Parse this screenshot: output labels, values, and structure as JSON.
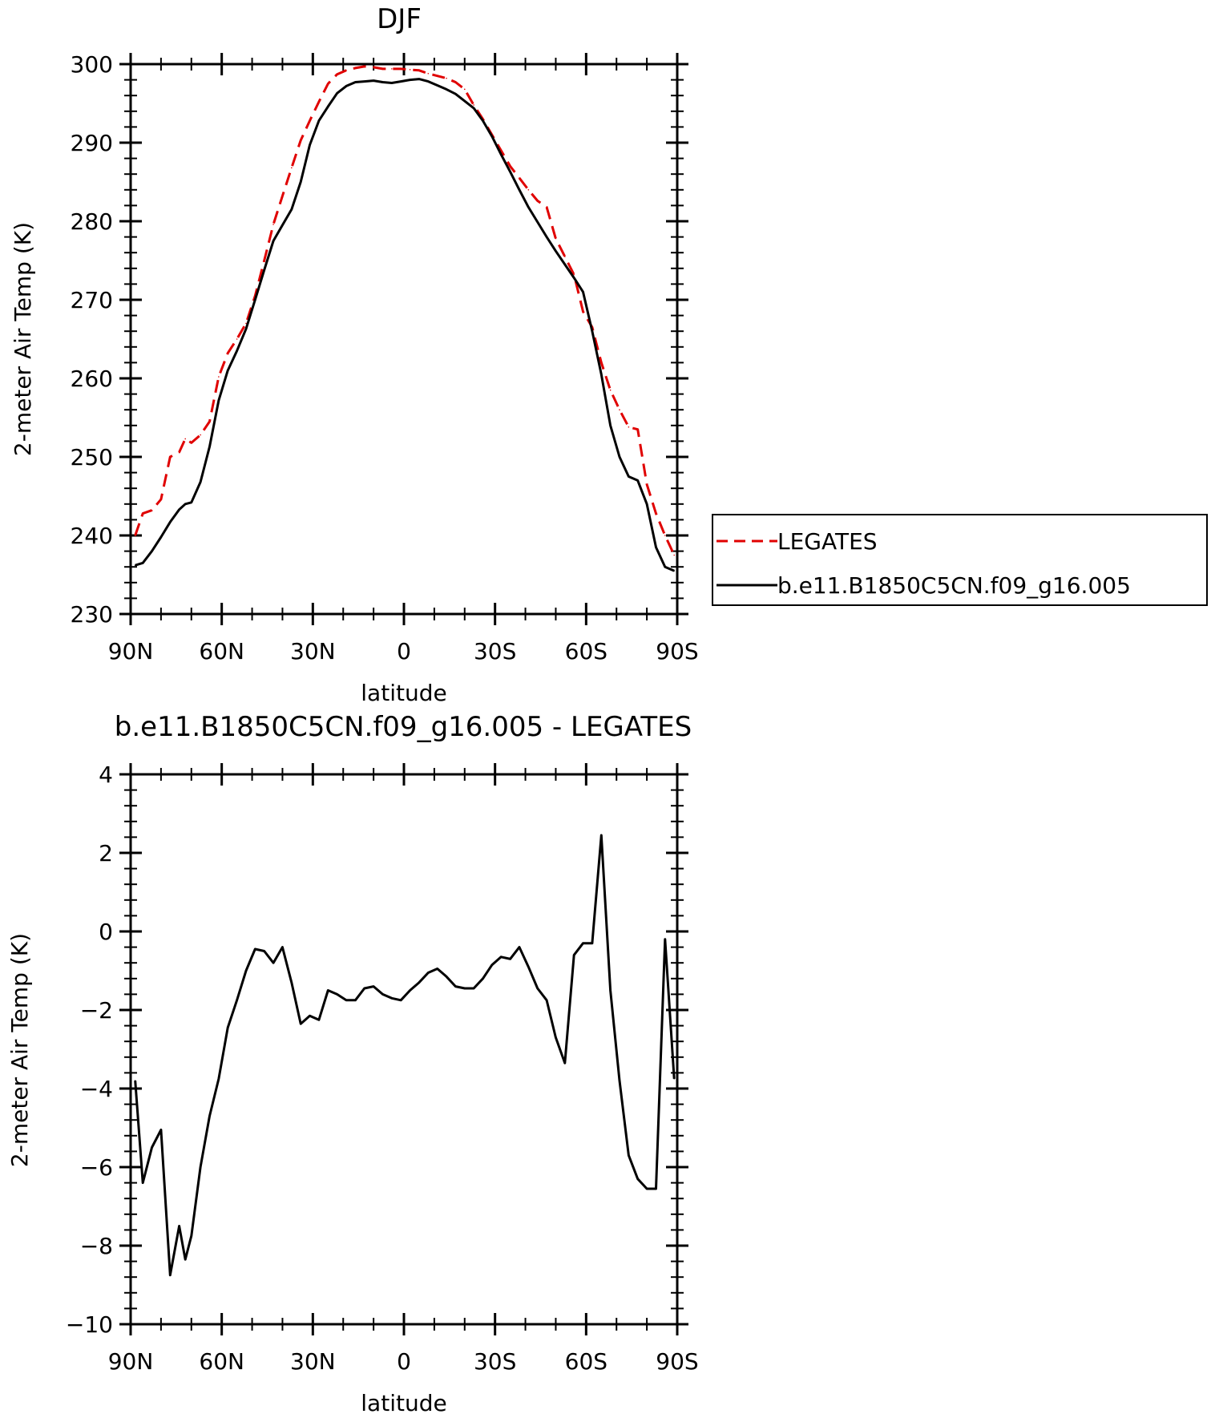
{
  "chart_data": [
    {
      "type": "line",
      "title": "DJF",
      "xlabel": "latitude",
      "ylabel": "2-meter Air Temp (K)",
      "xlim": [
        90,
        -90
      ],
      "ylim": [
        230,
        300
      ],
      "x_ticks": [
        90,
        60,
        30,
        0,
        -30,
        -60,
        -90
      ],
      "x_tick_labels": [
        "90N",
        "60N",
        "30N",
        "0",
        "30S",
        "60S",
        "90S"
      ],
      "y_ticks": [
        230,
        240,
        250,
        260,
        270,
        280,
        290,
        300
      ],
      "y_tick_labels": [
        "230",
        "240",
        "250",
        "260",
        "270",
        "280",
        "290",
        "300"
      ],
      "legend_position": "right",
      "series": [
        {
          "name": "LEGATES",
          "color": "#e00000",
          "style": "dashed",
          "x": [
            88.5,
            86,
            83,
            80,
            77,
            74,
            72,
            70,
            67,
            64,
            61,
            58,
            55,
            52,
            49,
            46,
            43,
            40,
            37,
            34,
            31,
            28,
            25,
            22,
            19,
            16,
            13,
            10,
            7,
            4,
            1,
            -2,
            -5,
            -8,
            -11,
            -14,
            -17,
            -20,
            -23,
            -26,
            -29,
            -32,
            -35,
            -38,
            -41,
            -44,
            -47,
            -50,
            -53,
            -56,
            -59,
            -62,
            -65,
            -68,
            -71,
            -74,
            -77,
            -80,
            -83,
            -86,
            -89
          ],
          "y": [
            240.0,
            242.8,
            243.2,
            244.6,
            250.0,
            250.6,
            252.3,
            251.8,
            252.8,
            254.5,
            260.2,
            263.2,
            265.0,
            267.0,
            270.5,
            275.0,
            279.6,
            283.2,
            286.8,
            290.3,
            292.8,
            295.2,
            297.5,
            298.7,
            299.2,
            299.5,
            299.7,
            299.6,
            299.4,
            299.4,
            299.4,
            299.3,
            299.2,
            298.8,
            298.5,
            298.2,
            297.7,
            296.8,
            294.8,
            293.0,
            291.0,
            289.0,
            287.0,
            285.5,
            284.0,
            282.6,
            281.8,
            277.8,
            275.5,
            273.2,
            268.5,
            266.5,
            262.0,
            258.5,
            256.0,
            253.8,
            253.5,
            246.5,
            242.8,
            240.0,
            237.5
          ]
        },
        {
          "name": "b.e11.B1850C5CN.f09_g16.005",
          "color": "#000000",
          "style": "solid",
          "x": [
            88.5,
            86,
            83,
            80,
            77,
            74,
            72,
            70,
            67,
            64,
            61,
            58,
            55,
            52,
            49,
            46,
            43,
            40,
            37,
            34,
            31,
            28,
            25,
            22,
            19,
            16,
            13,
            10,
            7,
            4,
            1,
            -2,
            -5,
            -8,
            -11,
            -14,
            -17,
            -20,
            -23,
            -26,
            -29,
            -32,
            -35,
            -38,
            -41,
            -44,
            -47,
            -50,
            -53,
            -56,
            -59,
            -62,
            -65,
            -68,
            -71,
            -74,
            -77,
            -80,
            -83,
            -86,
            -89
          ],
          "y": [
            236.2,
            236.5,
            238.0,
            239.8,
            241.7,
            243.3,
            244.0,
            244.2,
            246.8,
            251.3,
            257.2,
            261.0,
            263.5,
            266.3,
            270.0,
            273.8,
            277.5,
            279.5,
            281.5,
            285.0,
            289.7,
            292.8,
            294.6,
            296.3,
            297.2,
            297.7,
            297.8,
            297.9,
            297.7,
            297.6,
            297.8,
            298.0,
            298.1,
            297.8,
            297.3,
            296.8,
            296.2,
            295.3,
            294.4,
            292.8,
            290.8,
            288.5,
            286.3,
            284.0,
            281.8,
            279.9,
            278.0,
            276.2,
            274.5,
            272.8,
            271.0,
            266.0,
            260.5,
            254.0,
            250.0,
            247.5,
            247.0,
            244.0,
            238.5,
            236.0,
            235.5
          ]
        }
      ]
    },
    {
      "type": "line",
      "title": "b.e11.B1850C5CN.f09_g16.005 - LEGATES",
      "xlabel": "latitude",
      "ylabel": "2-meter Air Temp (K)",
      "xlim": [
        90,
        -90
      ],
      "ylim": [
        -10,
        4
      ],
      "x_ticks": [
        90,
        60,
        30,
        0,
        -30,
        -60,
        -90
      ],
      "x_tick_labels": [
        "90N",
        "60N",
        "30N",
        "0",
        "30S",
        "60S",
        "90S"
      ],
      "y_ticks": [
        -10,
        -8,
        -6,
        -4,
        -2,
        0,
        2,
        4
      ],
      "y_tick_labels": [
        "−10",
        "−8",
        "−6",
        "−4",
        "−2",
        "0",
        "2",
        "4"
      ],
      "series": [
        {
          "color": "#000000",
          "style": "solid",
          "x": [
            88.5,
            86,
            83,
            80,
            77,
            74,
            72,
            70,
            67,
            64,
            61,
            58,
            55,
            52,
            49,
            46,
            43,
            40,
            37,
            34,
            31,
            28,
            25,
            22,
            19,
            16,
            13,
            10,
            7,
            4,
            1,
            -2,
            -5,
            -8,
            -11,
            -14,
            -17,
            -20,
            -23,
            -26,
            -29,
            -32,
            -35,
            -38,
            -41,
            -44,
            -47,
            -50,
            -53,
            -56,
            -59,
            -62,
            -65,
            -68,
            -71,
            -74,
            -77,
            -80,
            -83,
            -86,
            -89
          ],
          "y": [
            -3.8,
            -6.4,
            -5.5,
            -5.05,
            -8.75,
            -7.5,
            -8.35,
            -7.75,
            -6.0,
            -4.7,
            -3.75,
            -2.45,
            -1.75,
            -1.0,
            -0.45,
            -0.5,
            -0.8,
            -0.4,
            -1.3,
            -2.35,
            -2.15,
            -2.25,
            -1.5,
            -1.6,
            -1.75,
            -1.75,
            -1.45,
            -1.4,
            -1.6,
            -1.7,
            -1.75,
            -1.5,
            -1.3,
            -1.05,
            -0.95,
            -1.15,
            -1.4,
            -1.45,
            -1.45,
            -1.2,
            -0.85,
            -0.65,
            -0.7,
            -0.4,
            -0.9,
            -1.45,
            -1.75,
            -2.7,
            -3.35,
            -0.6,
            -0.3,
            -0.3,
            2.45,
            -1.5,
            -3.8,
            -5.7,
            -6.3,
            -6.55,
            -6.55,
            -0.2,
            -3.75
          ]
        }
      ]
    }
  ]
}
